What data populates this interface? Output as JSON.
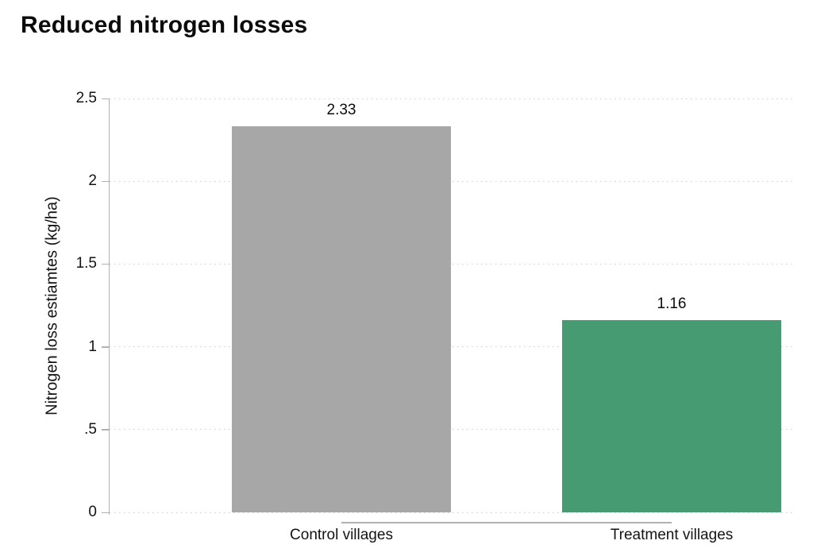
{
  "header": {
    "title": "Reduced nitrogen losses"
  },
  "chart_data": {
    "type": "bar",
    "title": "Reduced nitrogen losses",
    "categories": [
      "Control villages",
      "Treatment villages"
    ],
    "values": [
      2.33,
      1.16
    ],
    "bar_value_labels": [
      "2.33",
      "1.16"
    ],
    "bar_colors": [
      "#a7a7a7",
      "#479b73"
    ],
    "xlabel": "",
    "ylabel": "Nitrogen loss estiamtes (kg/ha)",
    "ylim": [
      0,
      2.5
    ],
    "ytick_values": [
      0,
      0.5,
      1,
      1.5,
      2,
      2.5
    ],
    "ytick_labels": [
      "0",
      ".5",
      "1",
      "1.5",
      "2",
      "2.5"
    ],
    "grid": "horizontal-dotted",
    "legend": "none",
    "colors": {
      "axis": "#b1b1b1",
      "gridline": "#cfcfcf",
      "text": "#141414",
      "background": "#ffffff"
    }
  }
}
